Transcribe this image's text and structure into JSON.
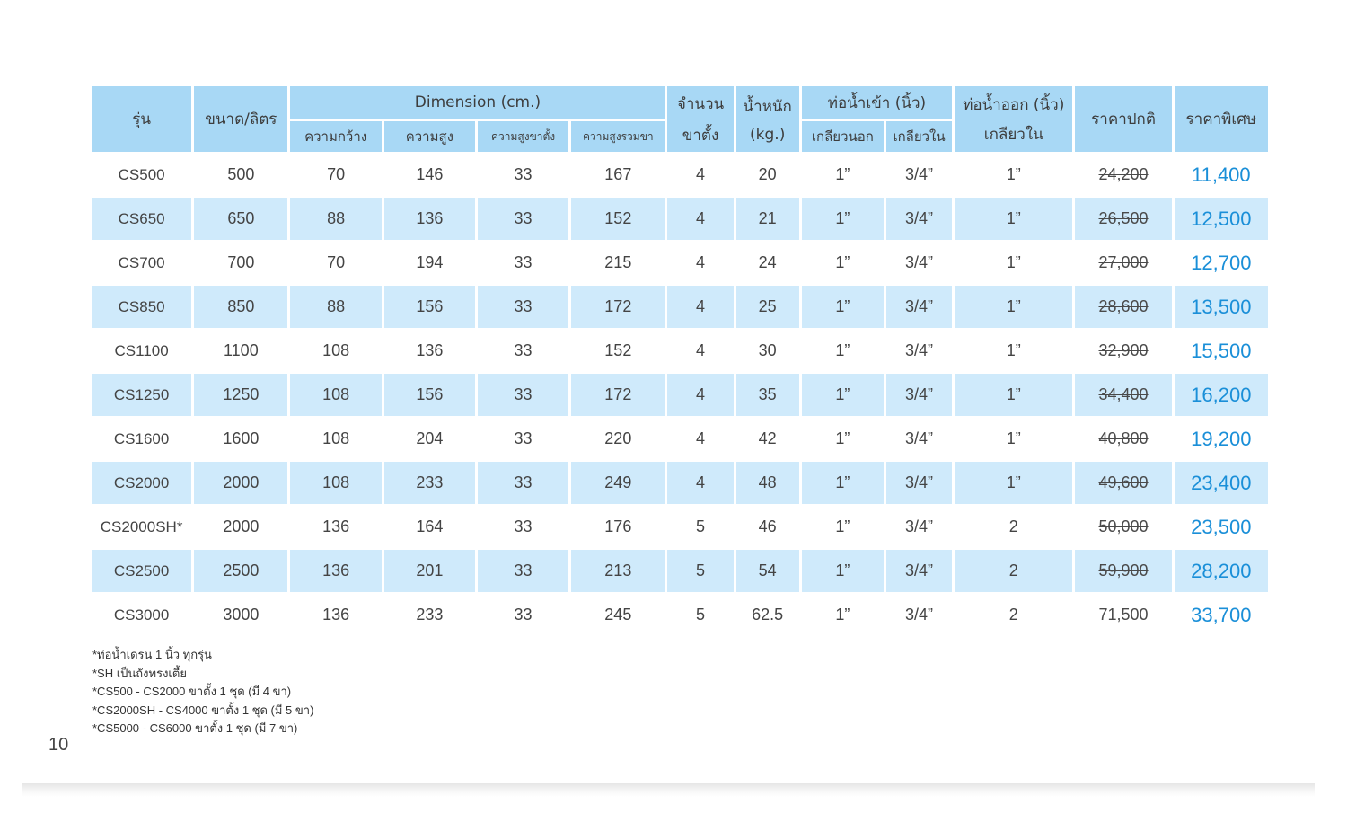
{
  "header": {
    "model": "รุ่น",
    "size": "ขนาด/ลิตร",
    "dimension": "Dimension (cm.)",
    "width": "ความกว้าง",
    "height": "ความสูง",
    "leg_height": "ความสูงขาตั้ง",
    "total_height": "ความสูงรวมขา",
    "legs_line1": "จำนวน",
    "legs_line2": "ขาตั้ง",
    "weight_line1": "น้ำหนัก",
    "weight_line2": "(kg.)",
    "inlet": "ท่อน้ำเข้า (นิ้ว)",
    "outer_thread": "เกลียวนอก",
    "inner_thread": "เกลียวใน",
    "outlet_line1": "ท่อน้ำออก (นิ้ว)",
    "outlet_line2": "เกลียวใน",
    "normal_price": "ราคาปกติ",
    "special_price": "ราคาพิเศษ"
  },
  "rows": [
    {
      "model": "CS500",
      "size": "500",
      "width": "70",
      "height": "146",
      "leg": "33",
      "total": "167",
      "legs": "4",
      "weight": "20",
      "outer": "1”",
      "inner": "3/4”",
      "outlet": "1”",
      "normal": "24,200",
      "special": "11,400"
    },
    {
      "model": "CS650",
      "size": "650",
      "width": "88",
      "height": "136",
      "leg": "33",
      "total": "152",
      "legs": "4",
      "weight": "21",
      "outer": "1”",
      "inner": "3/4”",
      "outlet": "1”",
      "normal": "26,500",
      "special": "12,500"
    },
    {
      "model": "CS700",
      "size": "700",
      "width": "70",
      "height": "194",
      "leg": "33",
      "total": "215",
      "legs": "4",
      "weight": "24",
      "outer": "1”",
      "inner": "3/4”",
      "outlet": "1”",
      "normal": "27,000",
      "special": "12,700"
    },
    {
      "model": "CS850",
      "size": "850",
      "width": "88",
      "height": "156",
      "leg": "33",
      "total": "172",
      "legs": "4",
      "weight": "25",
      "outer": "1”",
      "inner": "3/4”",
      "outlet": "1”",
      "normal": "28,600",
      "special": "13,500"
    },
    {
      "model": "CS1100",
      "size": "1100",
      "width": "108",
      "height": "136",
      "leg": "33",
      "total": "152",
      "legs": "4",
      "weight": "30",
      "outer": "1”",
      "inner": "3/4”",
      "outlet": "1”",
      "normal": "32,900",
      "special": "15,500"
    },
    {
      "model": "CS1250",
      "size": "1250",
      "width": "108",
      "height": "156",
      "leg": "33",
      "total": "172",
      "legs": "4",
      "weight": "35",
      "outer": "1”",
      "inner": "3/4”",
      "outlet": "1”",
      "normal": "34,400",
      "special": "16,200"
    },
    {
      "model": "CS1600",
      "size": "1600",
      "width": "108",
      "height": "204",
      "leg": "33",
      "total": "220",
      "legs": "4",
      "weight": "42",
      "outer": "1”",
      "inner": "3/4”",
      "outlet": "1”",
      "normal": "40,800",
      "special": "19,200"
    },
    {
      "model": "CS2000",
      "size": "2000",
      "width": "108",
      "height": "233",
      "leg": "33",
      "total": "249",
      "legs": "4",
      "weight": "48",
      "outer": "1”",
      "inner": "3/4”",
      "outlet": "1”",
      "normal": "49,600",
      "special": "23,400"
    },
    {
      "model": "CS2000SH*",
      "size": "2000",
      "width": "136",
      "height": "164",
      "leg": "33",
      "total": "176",
      "legs": "5",
      "weight": "46",
      "outer": "1”",
      "inner": "3/4”",
      "outlet": "2",
      "normal": "50,000",
      "special": "23,500"
    },
    {
      "model": "CS2500",
      "size": "2500",
      "width": "136",
      "height": "201",
      "leg": "33",
      "total": "213",
      "legs": "5",
      "weight": "54",
      "outer": "1”",
      "inner": "3/4”",
      "outlet": "2",
      "normal": "59,900",
      "special": "28,200"
    },
    {
      "model": "CS3000",
      "size": "3000",
      "width": "136",
      "height": "233",
      "leg": "33",
      "total": "245",
      "legs": "5",
      "weight": "62.5",
      "outer": "1”",
      "inner": "3/4”",
      "outlet": "2",
      "normal": "71,500",
      "special": "33,700"
    }
  ],
  "notes": [
    "*ท่อน้ำเดรน 1 นิ้ว ทุกรุ่น",
    "*SH เป็นถังทรงเตี้ย",
    "*CS500 - CS2000 ขาตั้ง 1 ชุด (มี 4 ขา)",
    "*CS2000SH - CS4000 ขาตั้ง 1 ชุด (มี 5 ขา)",
    "*CS5000 - CS6000 ขาตั้ง 1 ชุด (มี 7 ขา)"
  ],
  "page_number": "10"
}
